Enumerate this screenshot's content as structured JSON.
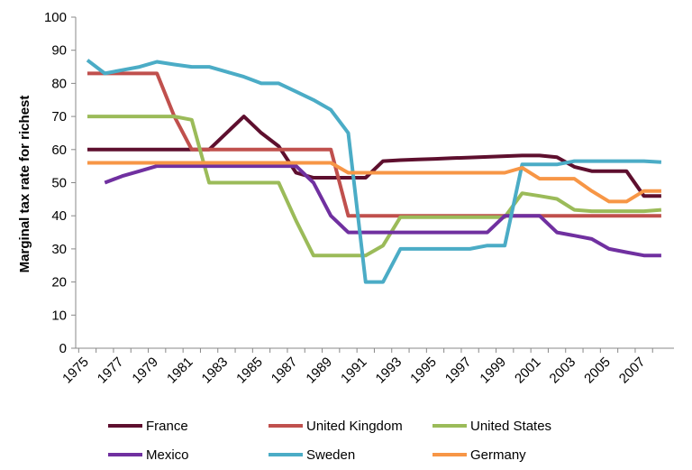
{
  "chart_data": {
    "type": "line",
    "title": "",
    "xlabel": "",
    "ylabel": "Marginal tax rate for richest",
    "xlim": [
      1975,
      2008
    ],
    "ylim": [
      0,
      100
    ],
    "y_ticks": [
      "0",
      "10",
      "20",
      "30",
      "40",
      "50",
      "60",
      "70",
      "80",
      "90",
      "100"
    ],
    "x_ticks": [
      "1975",
      "1977",
      "1979",
      "1981",
      "1983",
      "1985",
      "1987",
      "1989",
      "1991",
      "1993",
      "1995",
      "1997",
      "1999",
      "2001",
      "2003",
      "2005",
      "2007"
    ],
    "grid": false,
    "legend_position": "bottom",
    "series": [
      {
        "name": "France",
        "color": "#5E0F2E",
        "points": [
          [
            1975,
            60
          ],
          [
            1976,
            60
          ],
          [
            1977,
            60
          ],
          [
            1978,
            60
          ],
          [
            1979,
            60
          ],
          [
            1980,
            60
          ],
          [
            1981,
            60
          ],
          [
            1982,
            60
          ],
          [
            1983,
            65
          ],
          [
            1984,
            70
          ],
          [
            1985,
            65
          ],
          [
            1986,
            61
          ],
          [
            1987,
            53
          ],
          [
            1988,
            51.5
          ],
          [
            1989,
            51.5
          ],
          [
            1990,
            51.5
          ],
          [
            1991,
            51.5
          ],
          [
            1992,
            56.5
          ],
          [
            1993,
            56.8
          ],
          [
            1994,
            57
          ],
          [
            1995,
            57.2
          ],
          [
            1996,
            57.4
          ],
          [
            1997,
            57.6
          ],
          [
            1998,
            57.8
          ],
          [
            1999,
            58
          ],
          [
            2000,
            58.2
          ],
          [
            2001,
            58.2
          ],
          [
            2002,
            57.7
          ],
          [
            2003,
            54.8
          ],
          [
            2004,
            53.5
          ],
          [
            2005,
            53.5
          ],
          [
            2006,
            53.5
          ],
          [
            2007,
            46
          ],
          [
            2008,
            46
          ]
        ]
      },
      {
        "name": "United Kingdom",
        "color": "#C0504D",
        "points": [
          [
            1975,
            83
          ],
          [
            1976,
            83
          ],
          [
            1977,
            83
          ],
          [
            1978,
            83
          ],
          [
            1979,
            83
          ],
          [
            1980,
            70
          ],
          [
            1981,
            60
          ],
          [
            1982,
            60
          ],
          [
            1983,
            60
          ],
          [
            1984,
            60
          ],
          [
            1985,
            60
          ],
          [
            1986,
            60
          ],
          [
            1987,
            60
          ],
          [
            1988,
            60
          ],
          [
            1989,
            60
          ],
          [
            1990,
            40
          ],
          [
            1991,
            40
          ],
          [
            1992,
            40
          ],
          [
            1993,
            40
          ],
          [
            1994,
            40
          ],
          [
            1995,
            40
          ],
          [
            1996,
            40
          ],
          [
            1997,
            40
          ],
          [
            1998,
            40
          ],
          [
            1999,
            40
          ],
          [
            2000,
            40
          ],
          [
            2001,
            40
          ],
          [
            2002,
            40
          ],
          [
            2003,
            40
          ],
          [
            2004,
            40
          ],
          [
            2005,
            40
          ],
          [
            2006,
            40
          ],
          [
            2007,
            40
          ],
          [
            2008,
            40
          ]
        ]
      },
      {
        "name": "United States",
        "color": "#9BBB59",
        "points": [
          [
            1975,
            70
          ],
          [
            1976,
            70
          ],
          [
            1977,
            70
          ],
          [
            1978,
            70
          ],
          [
            1979,
            70
          ],
          [
            1980,
            70
          ],
          [
            1981,
            69
          ],
          [
            1982,
            50
          ],
          [
            1983,
            50
          ],
          [
            1984,
            50
          ],
          [
            1985,
            50
          ],
          [
            1986,
            50
          ],
          [
            1987,
            38.5
          ],
          [
            1988,
            28
          ],
          [
            1989,
            28
          ],
          [
            1990,
            28
          ],
          [
            1991,
            28
          ],
          [
            1992,
            31
          ],
          [
            1993,
            39.6
          ],
          [
            1994,
            39.6
          ],
          [
            1995,
            39.6
          ],
          [
            1996,
            39.6
          ],
          [
            1997,
            39.6
          ],
          [
            1998,
            39.6
          ],
          [
            1999,
            39.6
          ],
          [
            2000,
            46.8
          ],
          [
            2001,
            46
          ],
          [
            2002,
            45.1
          ],
          [
            2003,
            41.8
          ],
          [
            2004,
            41.4
          ],
          [
            2005,
            41.4
          ],
          [
            2006,
            41.4
          ],
          [
            2007,
            41.4
          ],
          [
            2008,
            41.8
          ]
        ]
      },
      {
        "name": "Mexico",
        "color": "#7030A0",
        "points": [
          [
            1976,
            50
          ],
          [
            1977,
            52
          ],
          [
            1978,
            53.5
          ],
          [
            1979,
            55
          ],
          [
            1980,
            55
          ],
          [
            1981,
            55
          ],
          [
            1982,
            55
          ],
          [
            1983,
            55
          ],
          [
            1984,
            55
          ],
          [
            1985,
            55
          ],
          [
            1986,
            55
          ],
          [
            1987,
            55
          ],
          [
            1988,
            50
          ],
          [
            1989,
            40
          ],
          [
            1990,
            35
          ],
          [
            1991,
            35
          ],
          [
            1992,
            35
          ],
          [
            1993,
            35
          ],
          [
            1994,
            35
          ],
          [
            1995,
            35
          ],
          [
            1996,
            35
          ],
          [
            1997,
            35
          ],
          [
            1998,
            35
          ],
          [
            1999,
            40
          ],
          [
            2000,
            40
          ],
          [
            2001,
            40
          ],
          [
            2002,
            35
          ],
          [
            2003,
            34
          ],
          [
            2004,
            33
          ],
          [
            2005,
            30
          ],
          [
            2006,
            29
          ],
          [
            2007,
            28
          ],
          [
            2008,
            28
          ]
        ]
      },
      {
        "name": "Sweden",
        "color": "#4BACC6",
        "points": [
          [
            1975,
            87
          ],
          [
            1976,
            83
          ],
          [
            1977,
            84
          ],
          [
            1978,
            85
          ],
          [
            1979,
            86.5
          ],
          [
            1980,
            85.7
          ],
          [
            1981,
            85
          ],
          [
            1982,
            85
          ],
          [
            1983,
            83.5
          ],
          [
            1984,
            82
          ],
          [
            1985,
            80
          ],
          [
            1986,
            80
          ],
          [
            1987,
            77.5
          ],
          [
            1988,
            75
          ],
          [
            1989,
            72
          ],
          [
            1990,
            65
          ],
          [
            1991,
            20
          ],
          [
            1992,
            20
          ],
          [
            1993,
            30
          ],
          [
            1994,
            30
          ],
          [
            1995,
            30
          ],
          [
            1996,
            30
          ],
          [
            1997,
            30
          ],
          [
            1998,
            31
          ],
          [
            1999,
            31
          ],
          [
            2000,
            55.5
          ],
          [
            2001,
            55.5
          ],
          [
            2002,
            55.5
          ],
          [
            2003,
            56.5
          ],
          [
            2004,
            56.5
          ],
          [
            2005,
            56.5
          ],
          [
            2006,
            56.5
          ],
          [
            2007,
            56.5
          ],
          [
            2008,
            56.2
          ]
        ]
      },
      {
        "name": "Germany",
        "color": "#F79646",
        "points": [
          [
            1975,
            56
          ],
          [
            1976,
            56
          ],
          [
            1977,
            56
          ],
          [
            1978,
            56
          ],
          [
            1979,
            56
          ],
          [
            1980,
            56
          ],
          [
            1981,
            56
          ],
          [
            1982,
            56
          ],
          [
            1983,
            56
          ],
          [
            1984,
            56
          ],
          [
            1985,
            56
          ],
          [
            1986,
            56
          ],
          [
            1987,
            56
          ],
          [
            1988,
            56
          ],
          [
            1989,
            56
          ],
          [
            1990,
            53
          ],
          [
            1991,
            53
          ],
          [
            1992,
            53
          ],
          [
            1993,
            53
          ],
          [
            1994,
            53
          ],
          [
            1995,
            53
          ],
          [
            1996,
            53
          ],
          [
            1997,
            53
          ],
          [
            1998,
            53
          ],
          [
            1999,
            53
          ],
          [
            2000,
            54.5
          ],
          [
            2001,
            51.2
          ],
          [
            2002,
            51.2
          ],
          [
            2003,
            51.2
          ],
          [
            2004,
            47.5
          ],
          [
            2005,
            44.3
          ],
          [
            2006,
            44.3
          ],
          [
            2007,
            47.5
          ],
          [
            2008,
            47.5
          ]
        ]
      }
    ]
  }
}
